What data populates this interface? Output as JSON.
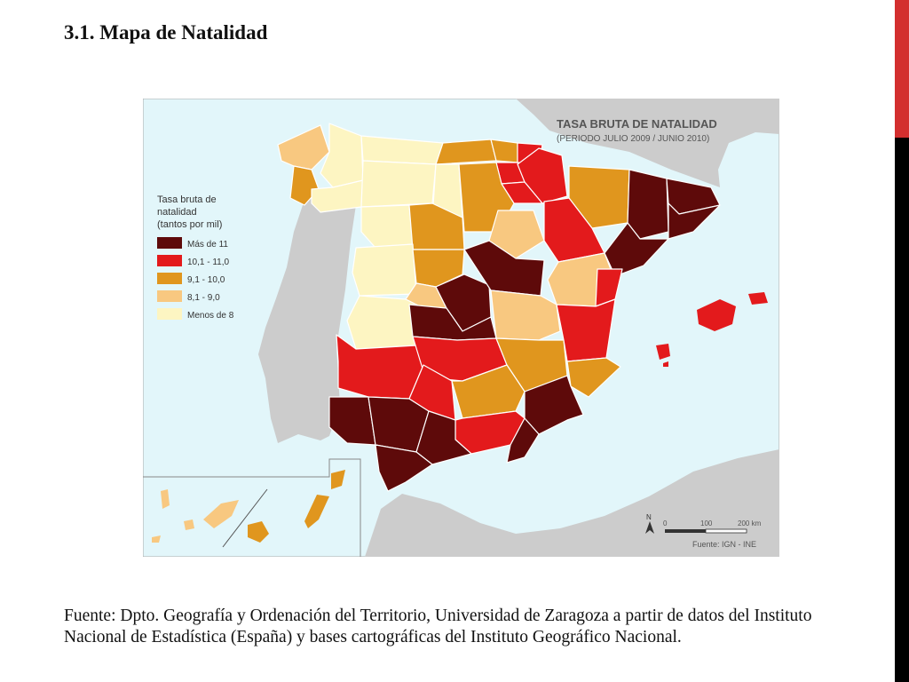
{
  "slide": {
    "title": "3.1. Mapa de Natalidad",
    "caption": "Fuente: Dpto. Geografía y Ordenación del Territorio, Universidad de Zaragoza a partir de datos del Instituto Nacional de Estadística (España) y bases cartográficas del Instituto Geográfico Nacional."
  },
  "map": {
    "title": "TASA BRUTA DE NATALIDAD",
    "subtitle": "(PERIODO JULIO 2009 / JUNIO 2010)",
    "legend": {
      "title_lines": [
        "Tasa bruta de",
        "natalidad",
        "(tantos por mil)"
      ],
      "items": [
        {
          "label": "Más de 11",
          "color": "#5e0a0a"
        },
        {
          "label": "10,1 - 11,0",
          "color": "#e31a1c"
        },
        {
          "label": "9,1 - 10,0",
          "color": "#e0961e"
        },
        {
          "label": "8,1 - 9,0",
          "color": "#f8c880"
        },
        {
          "label": "Menos de 8",
          "color": "#fdf5c2"
        }
      ]
    },
    "scale": {
      "ticks": [
        "0",
        "100",
        "200 km"
      ]
    },
    "north_label": "N",
    "source": "Fuente: IGN - INE",
    "colors": {
      "sea": "#e2f6fa",
      "land_other": "#cccccc",
      "border": "#ffffff"
    }
  }
}
